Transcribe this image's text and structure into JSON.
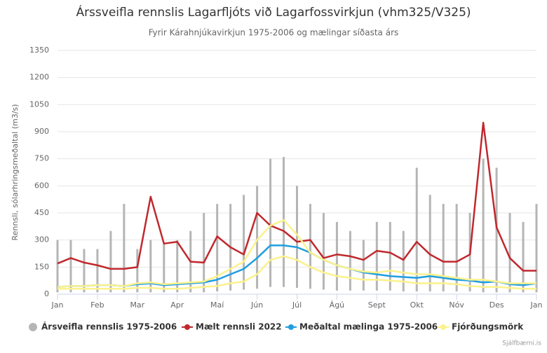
{
  "chart_data": {
    "type": "line",
    "title": "Árssveifla rennslis Lagarfljóts við Lagarfossvirkjun (vhm325/V325)",
    "subtitle": "Fyrir Kárahnjúkavirkjun 1975-2006 og mælingar síðasta árs",
    "y_label": "Rennsli, sólarhringsmeðaltal (m3/s)",
    "credit": "Sjálfbærni.is",
    "categories": [
      "Jan",
      null,
      null,
      "Feb",
      null,
      null,
      "Mar",
      null,
      null,
      "Apr",
      null,
      null,
      "Maí",
      null,
      null,
      "Jún",
      null,
      null,
      "Júl",
      null,
      null,
      "Ágú",
      null,
      null,
      "Sept",
      null,
      null,
      "Okt",
      null,
      null,
      "Nóv",
      null,
      null,
      "Des",
      null,
      null,
      "Jan"
    ],
    "ylim": [
      0,
      1350
    ],
    "yticks": [
      0,
      150,
      300,
      450,
      600,
      750,
      900,
      1050,
      1200,
      1350
    ],
    "grid": true,
    "series": [
      {
        "name": "Ársveifla rennslis 1975-2006",
        "color": "#b5b5b5",
        "range_style": "columns",
        "low": [
          10,
          10,
          10,
          10,
          10,
          10,
          10,
          10,
          10,
          10,
          10,
          10,
          15,
          20,
          25,
          30,
          40,
          40,
          35,
          30,
          25,
          20,
          20,
          20,
          20,
          20,
          15,
          15,
          15,
          15,
          15,
          15,
          10,
          10,
          10,
          10,
          10
        ],
        "high": [
          300,
          300,
          250,
          250,
          350,
          500,
          250,
          300,
          280,
          300,
          350,
          450,
          500,
          500,
          550,
          600,
          750,
          760,
          600,
          500,
          450,
          400,
          350,
          300,
          400,
          400,
          350,
          700,
          550,
          500,
          500,
          450,
          750,
          700,
          450,
          400,
          500
        ]
      },
      {
        "name": "Mælt rennsli 2022",
        "color": "#c0282d",
        "values": [
          170,
          200,
          175,
          160,
          140,
          140,
          150,
          540,
          280,
          290,
          180,
          175,
          320,
          260,
          220,
          450,
          380,
          350,
          290,
          300,
          200,
          220,
          210,
          190,
          240,
          230,
          190,
          290,
          220,
          180,
          180,
          220,
          950,
          370,
          200,
          130,
          130
        ]
      },
      {
        "name": "Meðaltal mælinga 1975-2006",
        "color": "#1f9ee0",
        "values": [
          40,
          45,
          45,
          50,
          50,
          45,
          55,
          60,
          50,
          55,
          60,
          65,
          80,
          110,
          140,
          200,
          270,
          270,
          260,
          230,
          190,
          160,
          140,
          120,
          110,
          100,
          95,
          90,
          100,
          90,
          80,
          75,
          65,
          70,
          55,
          50,
          60
        ]
      },
      {
        "name": "Fjórðungsmörk",
        "color": "#fbf28c",
        "range_style": "lines",
        "low": [
          30,
          30,
          30,
          30,
          30,
          30,
          35,
          35,
          30,
          30,
          35,
          40,
          45,
          60,
          70,
          110,
          190,
          210,
          190,
          150,
          120,
          100,
          90,
          80,
          80,
          75,
          70,
          60,
          60,
          60,
          55,
          45,
          40,
          40,
          35,
          30,
          30
        ],
        "high": [
          40,
          45,
          45,
          50,
          50,
          45,
          60,
          65,
          55,
          60,
          65,
          70,
          100,
          140,
          180,
          300,
          380,
          410,
          330,
          230,
          190,
          160,
          140,
          125,
          120,
          130,
          120,
          110,
          110,
          100,
          90,
          80,
          80,
          70,
          60,
          60,
          60
        ]
      }
    ]
  }
}
